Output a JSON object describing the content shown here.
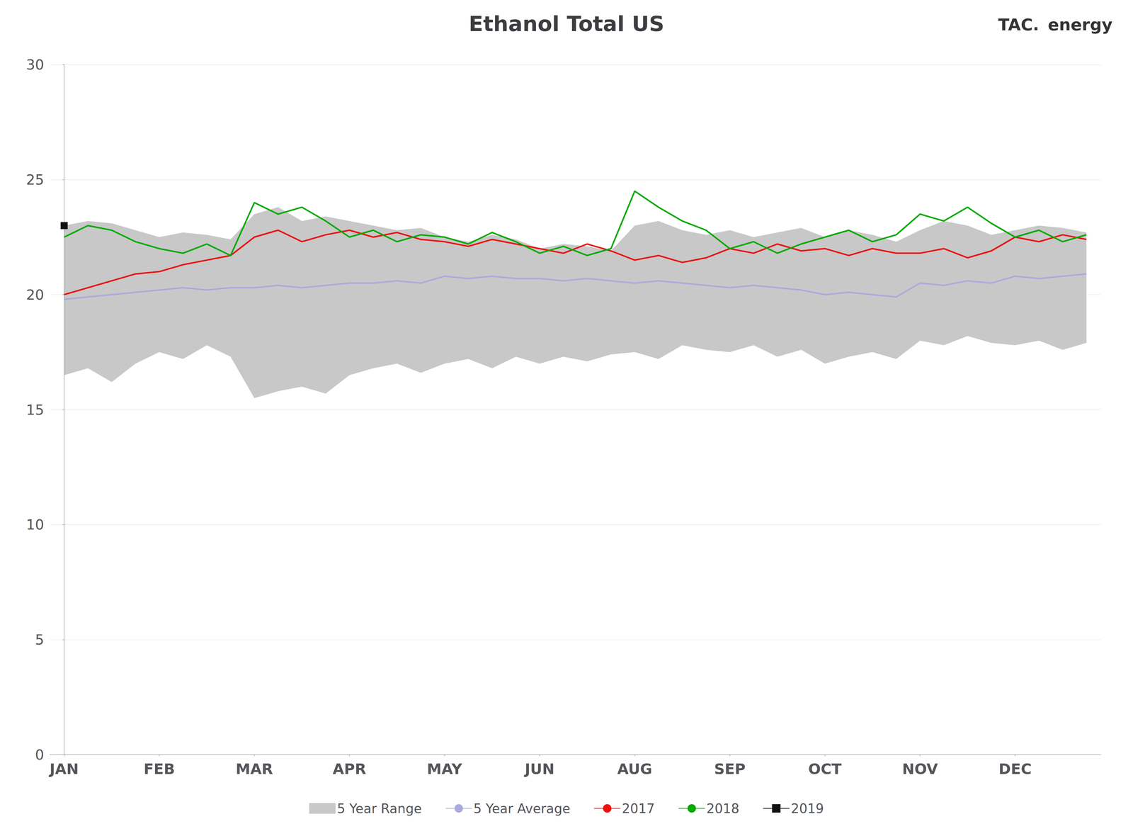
{
  "chart_data": {
    "type": "line",
    "title": "Ethanol Total US",
    "annotations": [
      "TAC.",
      "energy"
    ],
    "x": [
      0,
      0.25,
      0.5,
      0.75,
      1,
      1.25,
      1.5,
      1.75,
      2,
      2.25,
      2.5,
      2.75,
      3,
      3.25,
      3.5,
      3.75,
      4,
      4.25,
      4.5,
      4.75,
      5,
      5.25,
      5.5,
      5.75,
      6,
      6.25,
      6.5,
      6.75,
      7,
      7.25,
      7.5,
      7.75,
      8,
      8.25,
      8.5,
      8.75,
      9,
      9.25,
      9.5,
      9.75,
      10,
      10.25,
      10.5,
      10.75
    ],
    "xlim": [
      -0.15,
      10.9
    ],
    "xticks": [
      {
        "value": 0,
        "label": "JAN"
      },
      {
        "value": 1,
        "label": "FEB"
      },
      {
        "value": 2,
        "label": "MAR"
      },
      {
        "value": 3,
        "label": "APR"
      },
      {
        "value": 4,
        "label": "MAY"
      },
      {
        "value": 5,
        "label": "JUN"
      },
      {
        "value": 6,
        "label": "AUG"
      },
      {
        "value": 7,
        "label": "SEP"
      },
      {
        "value": 8,
        "label": "OCT"
      },
      {
        "value": 9,
        "label": "NOV"
      },
      {
        "value": 10,
        "label": "DEC"
      }
    ],
    "ylim": [
      0,
      30
    ],
    "yticks": [
      0,
      5,
      10,
      15,
      20,
      25,
      30
    ],
    "grid": true,
    "legend": "bottom",
    "series": [
      {
        "name": "5 Year Range",
        "type": "range",
        "color": "#c8c8c8",
        "lower": [
          16.5,
          16.8,
          16.2,
          17.0,
          17.5,
          17.2,
          17.8,
          17.3,
          15.5,
          15.8,
          16.0,
          15.7,
          16.5,
          16.8,
          17.0,
          16.6,
          17.0,
          17.2,
          16.8,
          17.3,
          17.0,
          17.3,
          17.1,
          17.4,
          17.5,
          17.2,
          17.8,
          17.6,
          17.5,
          17.8,
          17.3,
          17.6,
          17.0,
          17.3,
          17.5,
          17.2,
          18.0,
          17.8,
          18.2,
          17.9,
          17.8,
          18.0,
          17.6,
          17.9
        ],
        "upper": [
          23.0,
          23.2,
          23.1,
          22.8,
          22.5,
          22.7,
          22.6,
          22.4,
          23.5,
          23.8,
          23.2,
          23.4,
          23.2,
          23.0,
          22.8,
          22.9,
          22.5,
          22.3,
          22.6,
          22.4,
          22.0,
          22.2,
          22.1,
          21.9,
          23.0,
          23.2,
          22.8,
          22.6,
          22.8,
          22.5,
          22.7,
          22.9,
          22.5,
          22.8,
          22.6,
          22.3,
          22.8,
          23.2,
          23.0,
          22.6,
          22.8,
          23.0,
          22.9,
          22.7
        ]
      },
      {
        "name": "5 Year Average",
        "type": "line",
        "color": "#aaaadd",
        "values": [
          19.8,
          19.9,
          20.0,
          20.1,
          20.2,
          20.3,
          20.2,
          20.3,
          20.3,
          20.4,
          20.3,
          20.4,
          20.5,
          20.5,
          20.6,
          20.5,
          20.8,
          20.7,
          20.8,
          20.7,
          20.7,
          20.6,
          20.7,
          20.6,
          20.5,
          20.6,
          20.5,
          20.4,
          20.3,
          20.4,
          20.3,
          20.2,
          20.0,
          20.1,
          20.0,
          19.9,
          20.5,
          20.4,
          20.6,
          20.5,
          20.8,
          20.7,
          20.8,
          20.9
        ]
      },
      {
        "name": "2017",
        "type": "line",
        "color": "#ee1111",
        "values": [
          20.0,
          20.3,
          20.6,
          20.9,
          21.0,
          21.3,
          21.5,
          21.7,
          22.5,
          22.8,
          22.3,
          22.6,
          22.8,
          22.5,
          22.7,
          22.4,
          22.3,
          22.1,
          22.4,
          22.2,
          22.0,
          21.8,
          22.2,
          21.9,
          21.5,
          21.7,
          21.4,
          21.6,
          22.0,
          21.8,
          22.2,
          21.9,
          22.0,
          21.7,
          22.0,
          21.8,
          21.8,
          22.0,
          21.6,
          21.9,
          22.5,
          22.3,
          22.6,
          22.4
        ]
      },
      {
        "name": "2018",
        "type": "line",
        "color": "#00aa00",
        "values": [
          22.5,
          23.0,
          22.8,
          22.3,
          22.0,
          21.8,
          22.2,
          21.7,
          24.0,
          23.5,
          23.8,
          23.2,
          22.5,
          22.8,
          22.3,
          22.6,
          22.5,
          22.2,
          22.7,
          22.3,
          21.8,
          22.1,
          21.7,
          22.0,
          24.5,
          23.8,
          23.2,
          22.8,
          22.0,
          22.3,
          21.8,
          22.2,
          22.5,
          22.8,
          22.3,
          22.6,
          23.5,
          23.2,
          23.8,
          23.1,
          22.5,
          22.8,
          22.3,
          22.6
        ]
      },
      {
        "name": "2019",
        "type": "line",
        "color": "#111111",
        "marker": "square",
        "x": [
          0
        ],
        "values": [
          23.0
        ]
      }
    ]
  }
}
